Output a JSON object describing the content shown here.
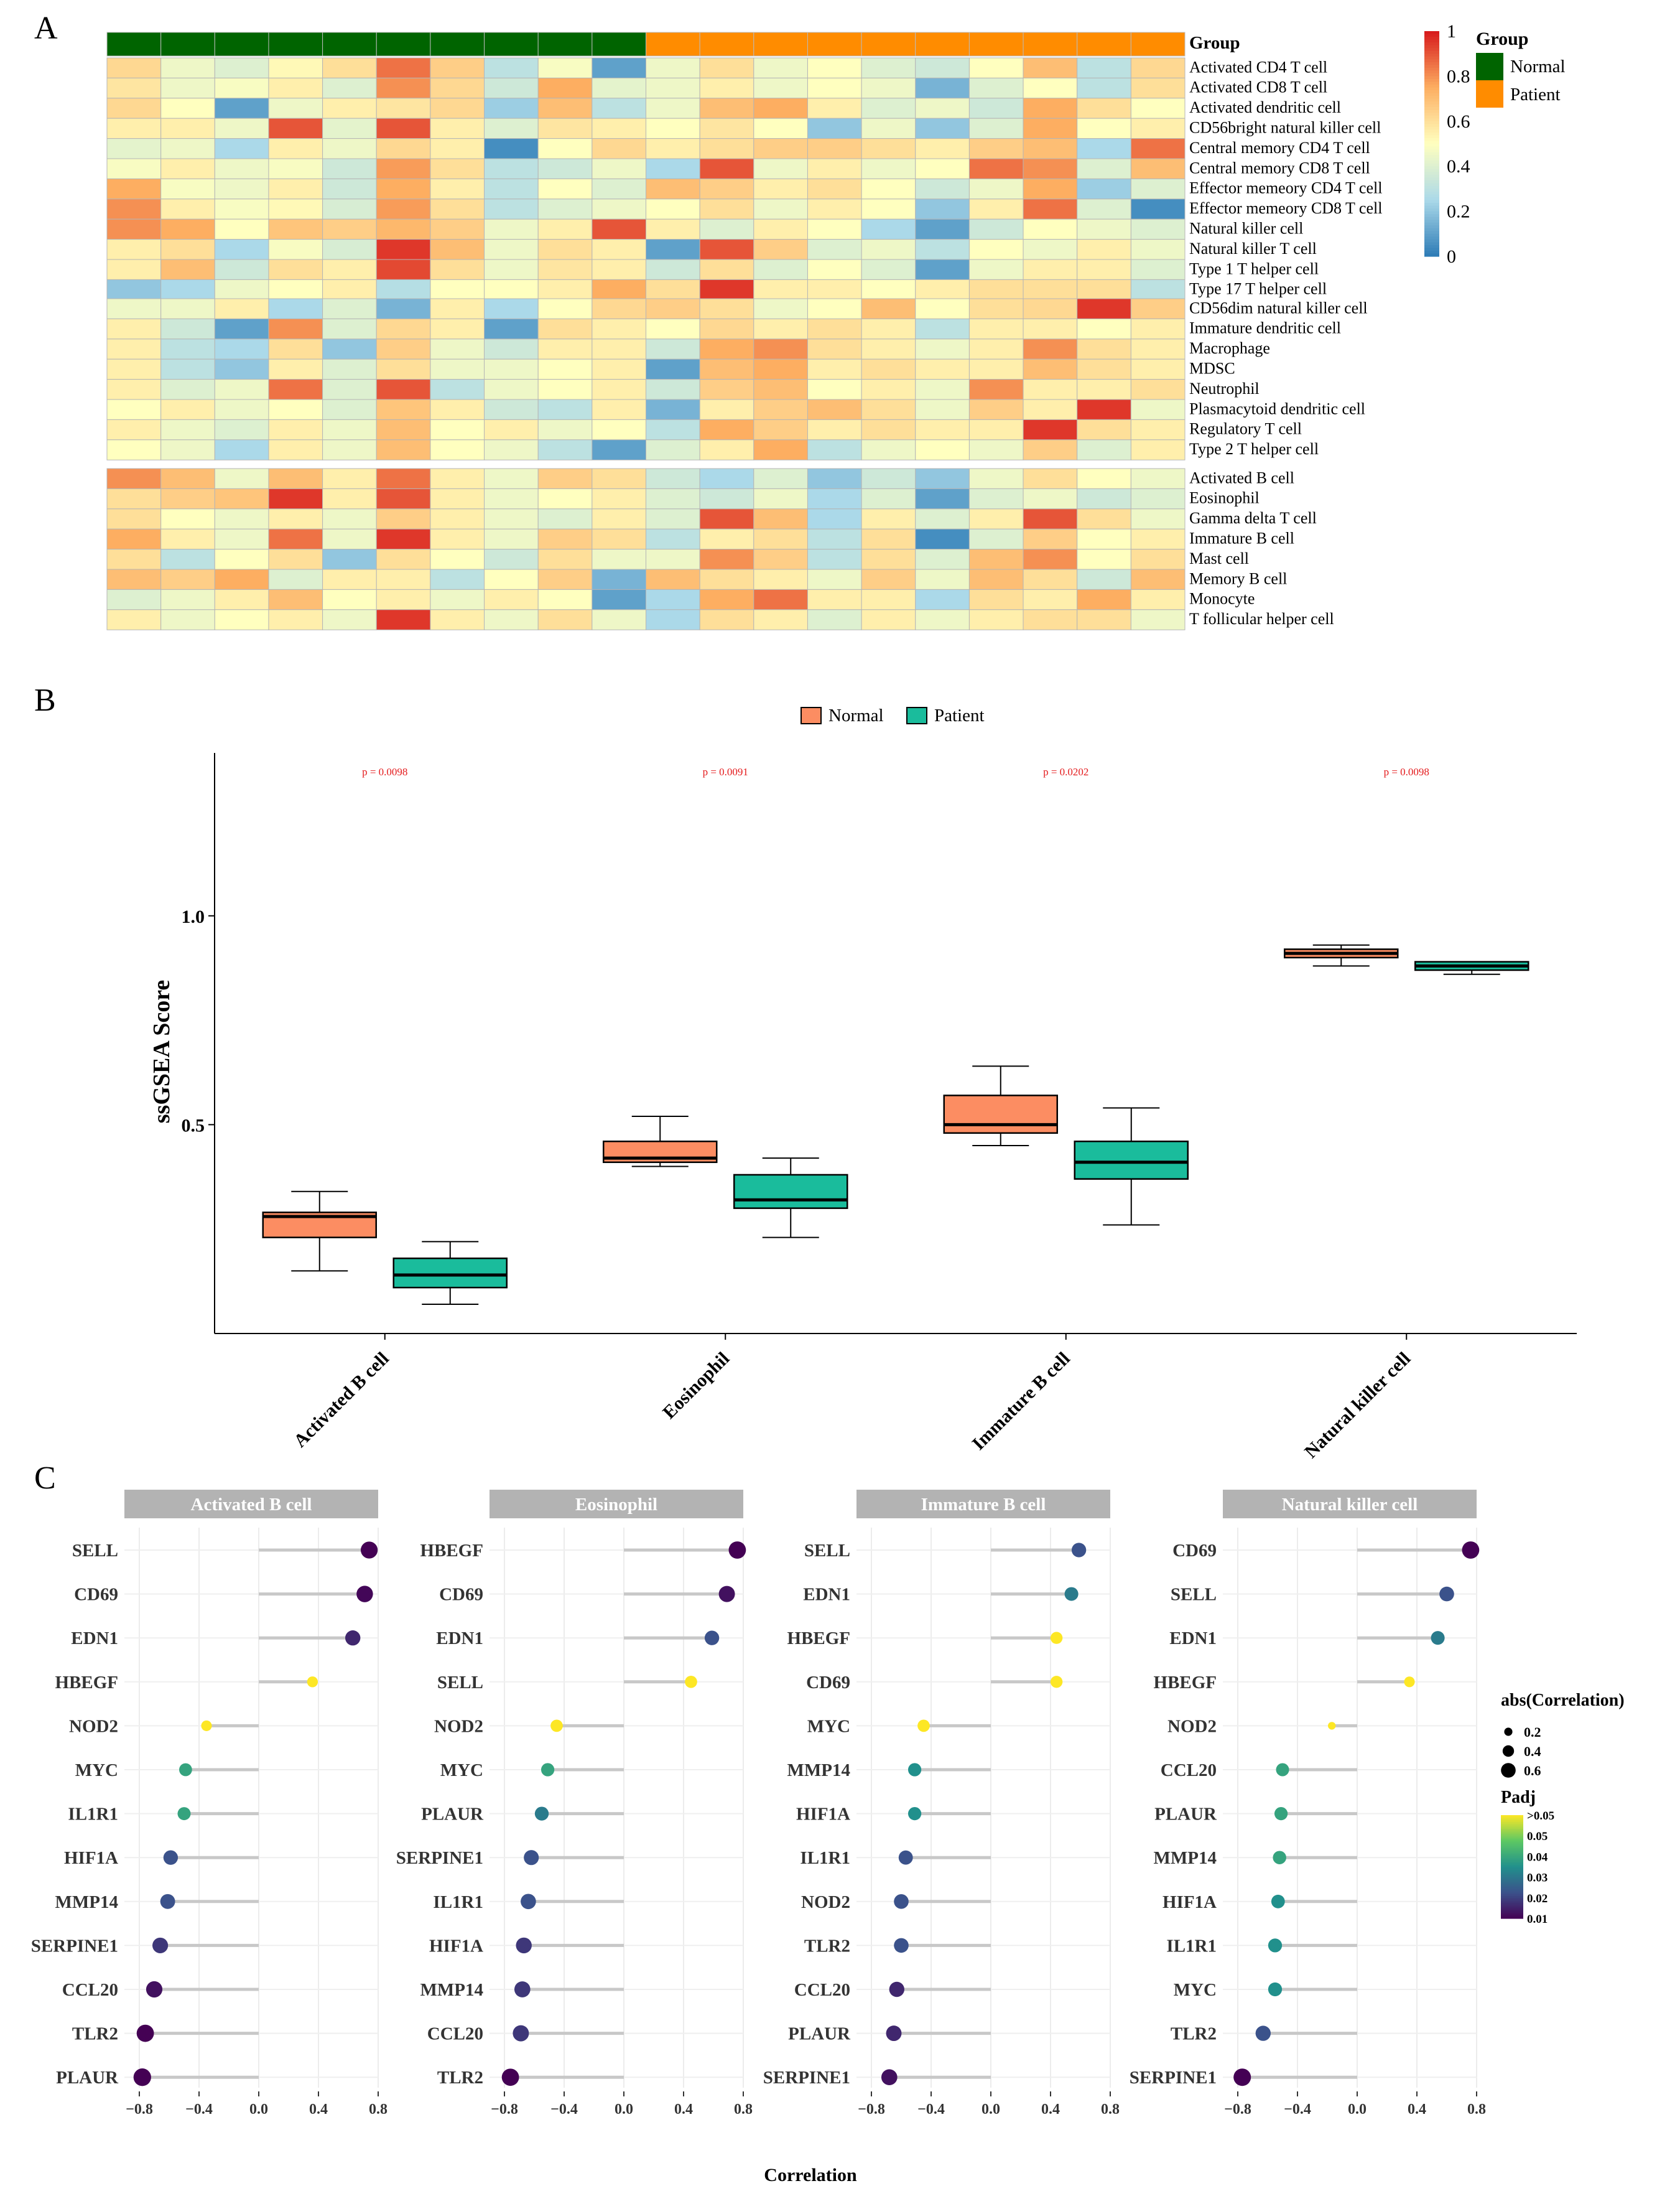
{
  "panels": {
    "a": "A",
    "b": "B",
    "c": "C"
  },
  "heatmap": {
    "group_header": "Group",
    "group_legend_title": "Group",
    "groups": [
      "Normal",
      "Patient"
    ],
    "group_colors": {
      "Normal": "#006400",
      "Patient": "#FF8C00"
    },
    "sample_groups": [
      "Normal",
      "Normal",
      "Normal",
      "Normal",
      "Normal",
      "Normal",
      "Normal",
      "Normal",
      "Normal",
      "Normal",
      "Patient",
      "Patient",
      "Patient",
      "Patient",
      "Patient",
      "Patient",
      "Patient",
      "Patient",
      "Patient",
      "Patient"
    ],
    "colorbar_ticks": [
      "1",
      "0.8",
      "0.6",
      "0.4",
      "0.2",
      "0"
    ],
    "colorbar_colors": [
      "#2C7BB6",
      "#ABD9E9",
      "#FFFFBF",
      "#FDAE61",
      "#D7191C"
    ],
    "row_groups": [
      {
        "rows": [
          "Activated CD4 T cell",
          "Activated CD8 T cell",
          "Activated dendritic cell",
          "CD56bright natural killer cell",
          "Central memory CD4 T cell",
          "Central memory CD8 T cell",
          "Effector memeory CD4 T cell",
          "Effector memeory CD8 T cell",
          "Natural killer cell",
          "Natural killer T cell",
          "Type 1 T helper cell",
          "Type 17 T helper cell"
        ]
      },
      {
        "rows": [
          "CD56dim natural killer cell",
          "Immature dendritic cell",
          "Macrophage",
          "MDSC",
          "Neutrophil",
          "Plasmacytoid dendritic cell",
          "Regulatory T cell",
          "Type 2 T helper cell"
        ]
      },
      {
        "rows": [
          "Activated B cell",
          "Eosinophil",
          "Gamma delta T cell",
          "Immature  B cell",
          "Mast cell",
          "Memory B cell",
          "Monocyte",
          "T follicular helper cell"
        ]
      }
    ],
    "values": [
      [
        0.62,
        0.45,
        0.4,
        0.52,
        0.6,
        0.85,
        0.65,
        0.3,
        0.48,
        0.1,
        0.45,
        0.6,
        0.45,
        0.5,
        0.4,
        0.35,
        0.5,
        0.7,
        0.3,
        0.62
      ],
      [
        0.58,
        0.45,
        0.48,
        0.55,
        0.4,
        0.8,
        0.62,
        0.35,
        0.75,
        0.42,
        0.45,
        0.55,
        0.45,
        0.5,
        0.45,
        0.15,
        0.4,
        0.5,
        0.3,
        0.6
      ],
      [
        0.62,
        0.5,
        0.1,
        0.45,
        0.55,
        0.58,
        0.62,
        0.22,
        0.7,
        0.3,
        0.45,
        0.7,
        0.75,
        0.55,
        0.4,
        0.45,
        0.35,
        0.75,
        0.6,
        0.5
      ],
      [
        0.55,
        0.55,
        0.45,
        0.9,
        0.42,
        0.9,
        0.55,
        0.4,
        0.58,
        0.55,
        0.5,
        0.58,
        0.5,
        0.2,
        0.45,
        0.2,
        0.4,
        0.75,
        0.5,
        0.55
      ],
      [
        0.42,
        0.45,
        0.25,
        0.55,
        0.45,
        0.62,
        0.55,
        0.05,
        0.5,
        0.62,
        0.55,
        0.6,
        0.65,
        0.65,
        0.6,
        0.55,
        0.65,
        0.7,
        0.25,
        0.85
      ],
      [
        0.48,
        0.55,
        0.45,
        0.48,
        0.35,
        0.78,
        0.6,
        0.3,
        0.35,
        0.45,
        0.25,
        0.9,
        0.45,
        0.55,
        0.45,
        0.5,
        0.85,
        0.8,
        0.4,
        0.7
      ],
      [
        0.75,
        0.48,
        0.45,
        0.55,
        0.35,
        0.75,
        0.55,
        0.3,
        0.5,
        0.4,
        0.7,
        0.65,
        0.55,
        0.6,
        0.5,
        0.35,
        0.45,
        0.75,
        0.22,
        0.4
      ],
      [
        0.8,
        0.55,
        0.48,
        0.52,
        0.38,
        0.78,
        0.6,
        0.3,
        0.4,
        0.45,
        0.5,
        0.6,
        0.45,
        0.55,
        0.5,
        0.2,
        0.55,
        0.85,
        0.4,
        0.05
      ],
      [
        0.8,
        0.75,
        0.5,
        0.68,
        0.65,
        0.72,
        0.65,
        0.45,
        0.55,
        0.9,
        0.55,
        0.4,
        0.55,
        0.5,
        0.25,
        0.1,
        0.35,
        0.5,
        0.45,
        0.4
      ],
      [
        0.55,
        0.6,
        0.25,
        0.48,
        0.38,
        0.95,
        0.7,
        0.45,
        0.6,
        0.55,
        0.1,
        0.9,
        0.65,
        0.4,
        0.45,
        0.3,
        0.5,
        0.45,
        0.55,
        0.45
      ],
      [
        0.55,
        0.7,
        0.35,
        0.6,
        0.55,
        0.92,
        0.6,
        0.45,
        0.58,
        0.55,
        0.35,
        0.6,
        0.4,
        0.5,
        0.4,
        0.1,
        0.45,
        0.55,
        0.55,
        0.4
      ],
      [
        0.2,
        0.25,
        0.45,
        0.5,
        0.55,
        0.28,
        0.5,
        0.5,
        0.55,
        0.75,
        0.6,
        0.95,
        0.55,
        0.55,
        0.5,
        0.55,
        0.6,
        0.6,
        0.6,
        0.3
      ],
      [
        0.45,
        0.45,
        0.55,
        0.25,
        0.4,
        0.15,
        0.55,
        0.25,
        0.5,
        0.62,
        0.65,
        0.6,
        0.45,
        0.5,
        0.7,
        0.5,
        0.6,
        0.62,
        0.95,
        0.65
      ],
      [
        0.55,
        0.35,
        0.1,
        0.8,
        0.4,
        0.62,
        0.55,
        0.1,
        0.6,
        0.55,
        0.5,
        0.62,
        0.55,
        0.6,
        0.55,
        0.3,
        0.55,
        0.55,
        0.5,
        0.55
      ],
      [
        0.55,
        0.3,
        0.25,
        0.6,
        0.2,
        0.65,
        0.45,
        0.35,
        0.55,
        0.55,
        0.35,
        0.75,
        0.8,
        0.6,
        0.55,
        0.45,
        0.55,
        0.8,
        0.6,
        0.55
      ],
      [
        0.55,
        0.3,
        0.2,
        0.55,
        0.4,
        0.6,
        0.45,
        0.45,
        0.5,
        0.55,
        0.1,
        0.7,
        0.75,
        0.55,
        0.6,
        0.55,
        0.55,
        0.7,
        0.6,
        0.55
      ],
      [
        0.55,
        0.4,
        0.45,
        0.85,
        0.4,
        0.9,
        0.3,
        0.45,
        0.5,
        0.55,
        0.35,
        0.65,
        0.7,
        0.5,
        0.55,
        0.45,
        0.8,
        0.55,
        0.55,
        0.6
      ],
      [
        0.5,
        0.55,
        0.45,
        0.5,
        0.4,
        0.68,
        0.55,
        0.35,
        0.3,
        0.55,
        0.15,
        0.55,
        0.65,
        0.7,
        0.6,
        0.45,
        0.65,
        0.55,
        0.95,
        0.45
      ],
      [
        0.55,
        0.45,
        0.4,
        0.55,
        0.45,
        0.7,
        0.5,
        0.55,
        0.45,
        0.5,
        0.3,
        0.75,
        0.65,
        0.55,
        0.6,
        0.55,
        0.55,
        0.95,
        0.6,
        0.55
      ],
      [
        0.5,
        0.45,
        0.25,
        0.55,
        0.45,
        0.7,
        0.5,
        0.45,
        0.3,
        0.1,
        0.4,
        0.55,
        0.75,
        0.3,
        0.45,
        0.5,
        0.45,
        0.65,
        0.4,
        0.55
      ],
      [
        0.8,
        0.7,
        0.45,
        0.7,
        0.55,
        0.85,
        0.55,
        0.45,
        0.65,
        0.6,
        0.35,
        0.25,
        0.4,
        0.2,
        0.35,
        0.2,
        0.45,
        0.6,
        0.5,
        0.45
      ],
      [
        0.6,
        0.65,
        0.68,
        0.95,
        0.55,
        0.9,
        0.55,
        0.45,
        0.5,
        0.55,
        0.4,
        0.35,
        0.45,
        0.25,
        0.4,
        0.1,
        0.4,
        0.45,
        0.35,
        0.4
      ],
      [
        0.6,
        0.5,
        0.45,
        0.55,
        0.45,
        0.65,
        0.55,
        0.45,
        0.4,
        0.55,
        0.4,
        0.9,
        0.7,
        0.25,
        0.55,
        0.4,
        0.55,
        0.9,
        0.6,
        0.45
      ],
      [
        0.75,
        0.55,
        0.45,
        0.85,
        0.45,
        0.95,
        0.55,
        0.45,
        0.65,
        0.6,
        0.3,
        0.55,
        0.6,
        0.3,
        0.6,
        0.05,
        0.4,
        0.65,
        0.5,
        0.55
      ],
      [
        0.6,
        0.3,
        0.5,
        0.6,
        0.2,
        0.6,
        0.5,
        0.35,
        0.6,
        0.45,
        0.45,
        0.8,
        0.65,
        0.3,
        0.6,
        0.4,
        0.7,
        0.8,
        0.5,
        0.6
      ],
      [
        0.7,
        0.65,
        0.75,
        0.4,
        0.55,
        0.55,
        0.3,
        0.5,
        0.65,
        0.15,
        0.7,
        0.6,
        0.55,
        0.45,
        0.65,
        0.45,
        0.7,
        0.6,
        0.35,
        0.7
      ],
      [
        0.4,
        0.45,
        0.55,
        0.7,
        0.5,
        0.55,
        0.45,
        0.55,
        0.5,
        0.1,
        0.25,
        0.75,
        0.85,
        0.55,
        0.55,
        0.25,
        0.6,
        0.55,
        0.75,
        0.55
      ],
      [
        0.55,
        0.45,
        0.5,
        0.55,
        0.45,
        0.95,
        0.55,
        0.45,
        0.6,
        0.45,
        0.25,
        0.6,
        0.55,
        0.4,
        0.55,
        0.45,
        0.55,
        0.6,
        0.6,
        0.45
      ]
    ]
  },
  "chart_data": [
    {
      "type": "box",
      "panel": "B",
      "title": "",
      "xlabel": "",
      "ylabel": "ssGSEA Score",
      "ylim": [
        0.0,
        1.39
      ],
      "yticks": [
        "0.5",
        "1.0"
      ],
      "ytick_values": [
        0.5,
        1.0
      ],
      "legend": {
        "items": [
          "Normal",
          "Patient"
        ],
        "placement": "top",
        "colors": [
          "#FC8D62",
          "#1ABC9C"
        ]
      },
      "categories": [
        "Activated B cell",
        "Eosinophil",
        "Immature  B cell",
        "Natural killer cell"
      ],
      "p_values": [
        "p = 0.0098",
        "p = 0.0091",
        "p = 0.0202",
        "p = 0.0098"
      ],
      "series": [
        {
          "name": "Normal",
          "boxes": [
            {
              "min": 0.15,
              "q1": 0.23,
              "median": 0.28,
              "q3": 0.29,
              "max": 0.34
            },
            {
              "min": 0.4,
              "q1": 0.41,
              "median": 0.42,
              "q3": 0.46,
              "max": 0.52
            },
            {
              "min": 0.45,
              "q1": 0.48,
              "median": 0.5,
              "q3": 0.57,
              "max": 0.64
            },
            {
              "min": 0.88,
              "q1": 0.9,
              "median": 0.91,
              "q3": 0.92,
              "max": 0.93
            }
          ]
        },
        {
          "name": "Patient",
          "boxes": [
            {
              "min": 0.07,
              "q1": 0.11,
              "median": 0.14,
              "q3": 0.18,
              "max": 0.22
            },
            {
              "min": 0.23,
              "q1": 0.3,
              "median": 0.32,
              "q3": 0.38,
              "max": 0.42
            },
            {
              "min": 0.26,
              "q1": 0.37,
              "median": 0.41,
              "q3": 0.46,
              "max": 0.54
            },
            {
              "min": 0.86,
              "q1": 0.87,
              "median": 0.88,
              "q3": 0.89,
              "max": 0.89
            }
          ]
        }
      ]
    },
    {
      "type": "lollipop",
      "panel": "C",
      "xlabel": "Correlation",
      "xlim": [
        -0.9,
        0.8
      ],
      "xtick_values": [
        -0.8,
        -0.4,
        0.0,
        0.4,
        0.8
      ],
      "xtick_labels": [
        "−0.8",
        "−0.4",
        "0.0",
        "0.4",
        "0.8"
      ],
      "size_legend": {
        "title": "abs(Correlation)",
        "items": [
          "0.2",
          "0.4",
          "0.6"
        ],
        "values": [
          0.2,
          0.4,
          0.6
        ]
      },
      "color_legend": {
        "title": "Padj",
        "ticks": [
          ">0.05",
          "0.05",
          "0.04",
          "0.03",
          "0.02",
          "0.01"
        ],
        "colors": [
          "#FDE725",
          "#5DC863",
          "#21908C",
          "#3B528B",
          "#440154"
        ]
      },
      "facets": [
        {
          "title": "Activated B cell",
          "items": [
            {
              "gene": "SELL",
              "r": 0.74,
              "padj": 0.005
            },
            {
              "gene": "CD69",
              "r": 0.71,
              "padj": 0.006
            },
            {
              "gene": "EDN1",
              "r": 0.63,
              "padj": 0.012
            },
            {
              "gene": "HBEGF",
              "r": 0.36,
              "padj": 0.06
            },
            {
              "gene": "NOD2",
              "r": -0.35,
              "padj": 0.06
            },
            {
              "gene": "MYC",
              "r": -0.49,
              "padj": 0.04
            },
            {
              "gene": "IL1R1",
              "r": -0.5,
              "padj": 0.04
            },
            {
              "gene": "HIF1A",
              "r": -0.59,
              "padj": 0.02
            },
            {
              "gene": "MMP14",
              "r": -0.61,
              "padj": 0.02
            },
            {
              "gene": "SERPINE1",
              "r": -0.66,
              "padj": 0.015
            },
            {
              "gene": "CCL20",
              "r": -0.7,
              "padj": 0.008
            },
            {
              "gene": "TLR2",
              "r": -0.76,
              "padj": 0.005
            },
            {
              "gene": "PLAUR",
              "r": -0.78,
              "padj": 0.005
            }
          ]
        },
        {
          "title": "Eosinophil",
          "items": [
            {
              "gene": "HBEGF",
              "r": 0.76,
              "padj": 0.005
            },
            {
              "gene": "CD69",
              "r": 0.69,
              "padj": 0.008
            },
            {
              "gene": "EDN1",
              "r": 0.59,
              "padj": 0.02
            },
            {
              "gene": "SELL",
              "r": 0.45,
              "padj": 0.06
            },
            {
              "gene": "NOD2",
              "r": -0.45,
              "padj": 0.06
            },
            {
              "gene": "MYC",
              "r": -0.51,
              "padj": 0.04
            },
            {
              "gene": "PLAUR",
              "r": -0.55,
              "padj": 0.03
            },
            {
              "gene": "SERPINE1",
              "r": -0.62,
              "padj": 0.02
            },
            {
              "gene": "IL1R1",
              "r": -0.64,
              "padj": 0.02
            },
            {
              "gene": "HIF1A",
              "r": -0.67,
              "padj": 0.015
            },
            {
              "gene": "MMP14",
              "r": -0.68,
              "padj": 0.015
            },
            {
              "gene": "CCL20",
              "r": -0.69,
              "padj": 0.015
            },
            {
              "gene": "TLR2",
              "r": -0.76,
              "padj": 0.005
            }
          ]
        },
        {
          "title": "Immature  B cell",
          "items": [
            {
              "gene": "SELL",
              "r": 0.59,
              "padj": 0.02
            },
            {
              "gene": "EDN1",
              "r": 0.54,
              "padj": 0.03
            },
            {
              "gene": "HBEGF",
              "r": 0.44,
              "padj": 0.06
            },
            {
              "gene": "CD69",
              "r": 0.44,
              "padj": 0.06
            },
            {
              "gene": "MYC",
              "r": -0.45,
              "padj": 0.06
            },
            {
              "gene": "MMP14",
              "r": -0.51,
              "padj": 0.035
            },
            {
              "gene": "HIF1A",
              "r": -0.51,
              "padj": 0.035
            },
            {
              "gene": "IL1R1",
              "r": -0.57,
              "padj": 0.02
            },
            {
              "gene": "NOD2",
              "r": -0.6,
              "padj": 0.02
            },
            {
              "gene": "TLR2",
              "r": -0.6,
              "padj": 0.02
            },
            {
              "gene": "CCL20",
              "r": -0.63,
              "padj": 0.012
            },
            {
              "gene": "PLAUR",
              "r": -0.65,
              "padj": 0.012
            },
            {
              "gene": "SERPINE1",
              "r": -0.68,
              "padj": 0.008
            }
          ]
        },
        {
          "title": "Natural killer cell",
          "items": [
            {
              "gene": "CD69",
              "r": 0.76,
              "padj": 0.005
            },
            {
              "gene": "SELL",
              "r": 0.6,
              "padj": 0.02
            },
            {
              "gene": "EDN1",
              "r": 0.54,
              "padj": 0.03
            },
            {
              "gene": "HBEGF",
              "r": 0.35,
              "padj": 0.06
            },
            {
              "gene": "NOD2",
              "r": -0.17,
              "padj": 0.06
            },
            {
              "gene": "CCL20",
              "r": -0.5,
              "padj": 0.04
            },
            {
              "gene": "PLAUR",
              "r": -0.51,
              "padj": 0.04
            },
            {
              "gene": "MMP14",
              "r": -0.52,
              "padj": 0.04
            },
            {
              "gene": "HIF1A",
              "r": -0.53,
              "padj": 0.035
            },
            {
              "gene": "IL1R1",
              "r": -0.55,
              "padj": 0.035
            },
            {
              "gene": "MYC",
              "r": -0.55,
              "padj": 0.035
            },
            {
              "gene": "TLR2",
              "r": -0.63,
              "padj": 0.02
            },
            {
              "gene": "SERPINE1",
              "r": -0.77,
              "padj": 0.005
            }
          ]
        }
      ]
    }
  ]
}
